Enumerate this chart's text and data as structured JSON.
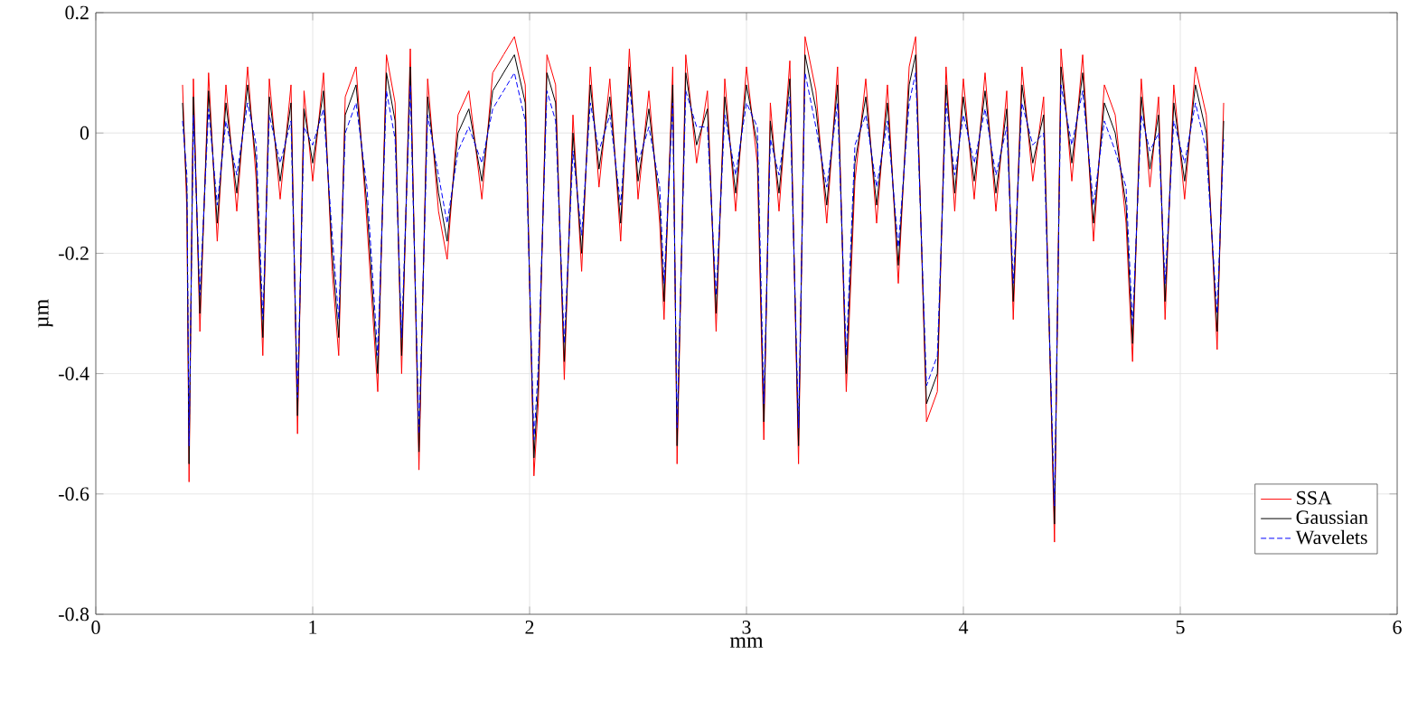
{
  "chart_data": {
    "type": "line",
    "xlabel": "mm",
    "ylabel": "µm",
    "xlim": [
      0,
      6
    ],
    "xticks": [
      0,
      1,
      2,
      3,
      4,
      5,
      6
    ],
    "ylim": [
      -0.8,
      0.2
    ],
    "yticks": [
      -0.8,
      -0.6,
      -0.4,
      -0.2,
      0,
      0.2
    ],
    "grid": true,
    "legend": "bottom right",
    "marker": "none",
    "x": [
      0.4,
      0.42,
      0.43,
      0.45,
      0.48,
      0.52,
      0.56,
      0.6,
      0.65,
      0.7,
      0.74,
      0.77,
      0.8,
      0.85,
      0.9,
      0.93,
      0.96,
      1.0,
      1.05,
      1.09,
      1.12,
      1.15,
      1.2,
      1.25,
      1.3,
      1.34,
      1.38,
      1.41,
      1.45,
      1.49,
      1.53,
      1.58,
      1.62,
      1.67,
      1.72,
      1.78,
      1.83,
      1.88,
      1.93,
      1.98,
      2.02,
      2.04,
      2.08,
      2.12,
      2.16,
      2.2,
      2.24,
      2.28,
      2.32,
      2.37,
      2.42,
      2.46,
      2.5,
      2.55,
      2.6,
      2.62,
      2.66,
      2.68,
      2.72,
      2.77,
      2.82,
      2.86,
      2.9,
      2.95,
      3.0,
      3.05,
      3.08,
      3.11,
      3.15,
      3.2,
      3.24,
      3.27,
      3.32,
      3.37,
      3.42,
      3.46,
      3.5,
      3.55,
      3.6,
      3.65,
      3.7,
      3.75,
      3.78,
      3.83,
      3.88,
      3.92,
      3.96,
      4.0,
      4.05,
      4.1,
      4.15,
      4.2,
      4.23,
      4.27,
      4.32,
      4.37,
      4.42,
      4.45,
      4.5,
      4.55,
      4.6,
      4.65,
      4.7,
      4.75,
      4.78,
      4.82,
      4.86,
      4.9,
      4.93,
      4.97,
      5.02,
      5.07,
      5.12,
      5.17,
      5.2
    ],
    "series": [
      {
        "name": "SSA",
        "color": "#ff0000",
        "line_style": "solid",
        "values": [
          0.08,
          -0.13,
          -0.58,
          0.09,
          -0.33,
          0.1,
          -0.18,
          0.08,
          -0.13,
          0.11,
          -0.08,
          -0.37,
          0.09,
          -0.11,
          0.08,
          -0.5,
          0.07,
          -0.08,
          0.1,
          -0.23,
          -0.37,
          0.06,
          0.11,
          -0.15,
          -0.43,
          0.13,
          0.05,
          -0.4,
          0.14,
          -0.56,
          0.09,
          -0.13,
          -0.21,
          0.03,
          0.07,
          -0.11,
          0.1,
          0.13,
          0.16,
          0.08,
          -0.57,
          -0.45,
          0.13,
          0.08,
          -0.41,
          0.03,
          -0.23,
          0.11,
          -0.09,
          0.09,
          -0.18,
          0.14,
          -0.11,
          0.07,
          -0.15,
          -0.31,
          0.11,
          -0.55,
          0.13,
          -0.05,
          0.07,
          -0.33,
          0.09,
          -0.13,
          0.11,
          -0.05,
          -0.51,
          0.05,
          -0.13,
          0.12,
          -0.55,
          0.16,
          0.07,
          -0.15,
          0.11,
          -0.43,
          -0.08,
          0.09,
          -0.15,
          0.08,
          -0.25,
          0.11,
          0.16,
          -0.48,
          -0.43,
          0.11,
          -0.13,
          0.09,
          -0.11,
          0.1,
          -0.13,
          0.07,
          -0.31,
          0.11,
          -0.08,
          0.06,
          -0.68,
          0.14,
          -0.08,
          0.13,
          -0.18,
          0.08,
          0.03,
          -0.15,
          -0.38,
          0.09,
          -0.09,
          0.06,
          -0.31,
          0.08,
          -0.11,
          0.11,
          0.03,
          -0.36,
          0.05
        ]
      },
      {
        "name": "Gaussian",
        "color": "#000000",
        "line_style": "solid",
        "values": [
          0.05,
          -0.1,
          -0.55,
          0.06,
          -0.3,
          0.07,
          -0.15,
          0.05,
          -0.1,
          0.08,
          -0.05,
          -0.34,
          0.06,
          -0.08,
          0.05,
          -0.47,
          0.04,
          -0.05,
          0.07,
          -0.2,
          -0.34,
          0.03,
          0.08,
          -0.12,
          -0.4,
          0.1,
          0.02,
          -0.37,
          0.11,
          -0.53,
          0.06,
          -0.1,
          -0.18,
          0.0,
          0.04,
          -0.08,
          0.07,
          0.1,
          0.13,
          0.05,
          -0.54,
          -0.42,
          0.1,
          0.05,
          -0.38,
          0.0,
          -0.2,
          0.08,
          -0.06,
          0.06,
          -0.15,
          0.11,
          -0.08,
          0.04,
          -0.12,
          -0.28,
          0.08,
          -0.52,
          0.1,
          -0.02,
          0.04,
          -0.3,
          0.06,
          -0.1,
          0.08,
          -0.02,
          -0.48,
          0.02,
          -0.1,
          0.09,
          -0.52,
          0.13,
          0.04,
          -0.12,
          0.08,
          -0.4,
          -0.05,
          0.06,
          -0.12,
          0.05,
          -0.22,
          0.08,
          0.13,
          -0.45,
          -0.4,
          0.08,
          -0.1,
          0.06,
          -0.08,
          0.07,
          -0.1,
          0.04,
          -0.28,
          0.08,
          -0.05,
          0.03,
          -0.65,
          0.11,
          -0.05,
          0.1,
          -0.15,
          0.05,
          0.0,
          -0.12,
          -0.35,
          0.06,
          -0.06,
          0.03,
          -0.28,
          0.05,
          -0.08,
          0.08,
          0.0,
          -0.33,
          0.02
        ]
      },
      {
        "name": "Wavelets",
        "color": "#0000ff",
        "line_style": "dashed",
        "values": [
          0.02,
          -0.07,
          -0.52,
          0.03,
          -0.27,
          0.04,
          -0.12,
          0.02,
          -0.07,
          0.05,
          -0.02,
          -0.31,
          0.03,
          -0.05,
          0.02,
          -0.44,
          0.01,
          -0.02,
          0.04,
          -0.17,
          -0.31,
          0.0,
          0.05,
          -0.09,
          -0.37,
          0.07,
          -0.01,
          -0.34,
          0.08,
          -0.5,
          0.03,
          -0.07,
          -0.15,
          -0.03,
          0.01,
          -0.05,
          0.04,
          0.07,
          0.1,
          0.02,
          -0.51,
          -0.39,
          0.07,
          0.02,
          -0.35,
          -0.03,
          -0.17,
          0.05,
          -0.03,
          0.03,
          -0.12,
          0.08,
          -0.05,
          0.01,
          -0.09,
          -0.25,
          0.05,
          -0.49,
          0.07,
          0.01,
          0.01,
          -0.27,
          0.03,
          -0.07,
          0.05,
          0.01,
          -0.45,
          -0.01,
          -0.07,
          0.06,
          -0.49,
          0.1,
          0.01,
          -0.09,
          0.05,
          -0.37,
          -0.02,
          0.03,
          -0.09,
          0.02,
          -0.19,
          0.05,
          0.1,
          -0.42,
          -0.37,
          0.05,
          -0.07,
          0.03,
          -0.05,
          0.04,
          -0.07,
          0.01,
          -0.25,
          0.05,
          -0.02,
          0.0,
          -0.62,
          0.08,
          -0.02,
          0.07,
          -0.12,
          0.02,
          -0.03,
          -0.09,
          -0.32,
          0.03,
          -0.03,
          0.0,
          -0.25,
          0.02,
          -0.05,
          0.05,
          -0.03,
          -0.3,
          -0.01
        ]
      }
    ]
  }
}
